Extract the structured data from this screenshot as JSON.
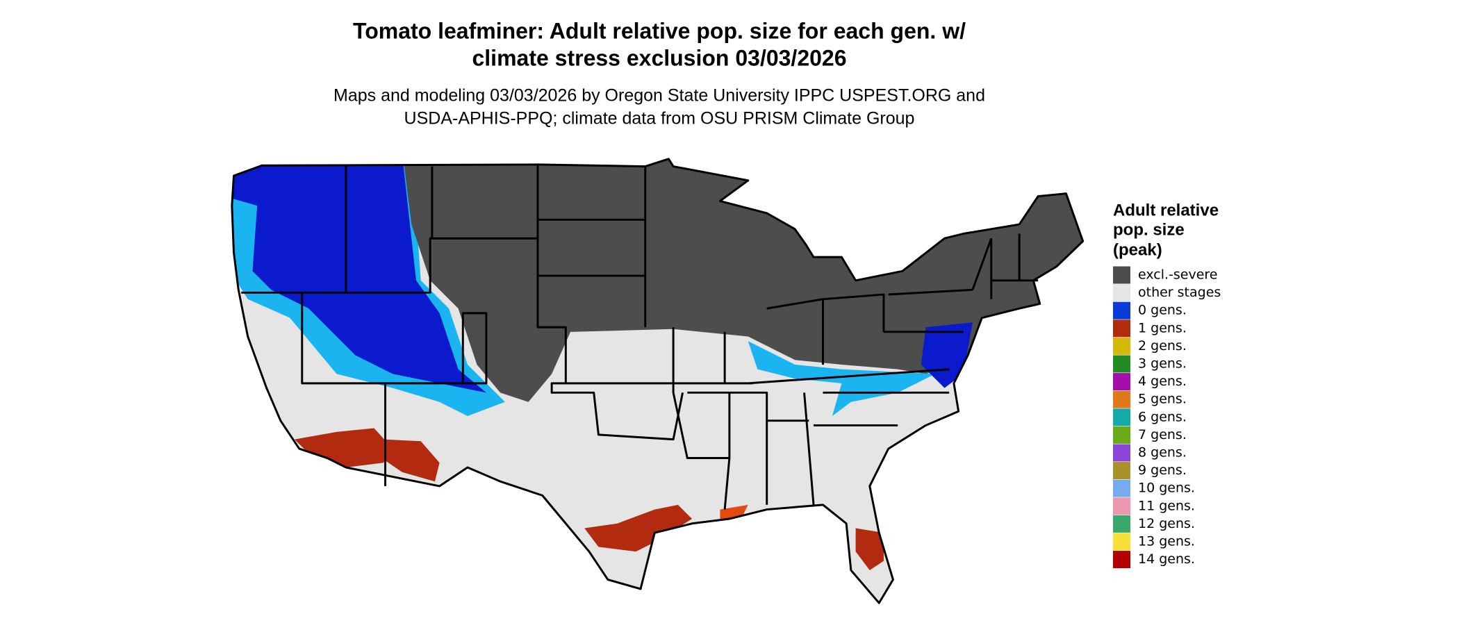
{
  "title": [
    "Tomato leafminer: Adult relative pop. size for each gen. w/",
    "climate stress exclusion 03/03/2026"
  ],
  "subtitle": [
    "Maps and modeling 03/03/2026 by Oregon State University IPPC USPEST.ORG and",
    "USDA-APHIS-PPQ; climate data from OSU PRISM Climate Group"
  ],
  "legend": {
    "title": [
      "Adult relative",
      "pop. size",
      "(peak)"
    ],
    "items": [
      {
        "label": "excl.-severe",
        "color": "#4d4d4d"
      },
      {
        "label": "other stages",
        "color": "#e5e5e5"
      },
      {
        "label": "0 gens.",
        "color": "#0a3bd9"
      },
      {
        "label": "1 gens.",
        "color": "#b22a10"
      },
      {
        "label": "2 gens.",
        "color": "#d4b80a"
      },
      {
        "label": "3 gens.",
        "color": "#238b23"
      },
      {
        "label": "4 gens.",
        "color": "#a30fa8"
      },
      {
        "label": "5 gens.",
        "color": "#e0771a"
      },
      {
        "label": "6 gens.",
        "color": "#17a8a8"
      },
      {
        "label": "7 gens.",
        "color": "#6aaa14"
      },
      {
        "label": "8 gens.",
        "color": "#8a46d9"
      },
      {
        "label": "9 gens.",
        "color": "#a8902a"
      },
      {
        "label": "10 gens.",
        "color": "#78aaf0"
      },
      {
        "label": "11 gens.",
        "color": "#ec96b0"
      },
      {
        "label": "12 gens.",
        "color": "#3aa86a"
      },
      {
        "label": "13 gens.",
        "color": "#f8e038"
      },
      {
        "label": "14 gens.",
        "color": "#b40000"
      }
    ]
  }
}
